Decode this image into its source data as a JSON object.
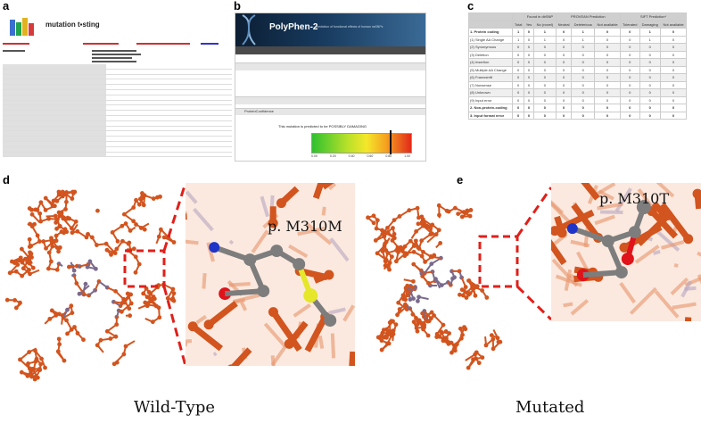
{
  "panels": {
    "a": "a",
    "b": "b",
    "c": "c",
    "d": "d",
    "e": "e"
  },
  "panel_a": {
    "title": "mutation t▪sting",
    "logo_icon": "mutation-taster-logo-icon"
  },
  "panel_b": {
    "title": "PolyPhen-2",
    "subtitle": "prediction of functional effects of human nsSNPs",
    "tag": "ProteinConfidence",
    "result_text": "This mutation is predicted to be POSSIBLY DAMAGING",
    "ticks": [
      "0.00",
      "0.20",
      "0.40",
      "0.60",
      "0.80",
      "1.00"
    ],
    "score": 0.78
  },
  "panel_c": {
    "headers": [
      "",
      "Total",
      "Yes",
      "No (novel)",
      "Neutral",
      "Deleterious",
      "Not available",
      "Tolerated",
      "Damaging",
      "Not available"
    ],
    "group_headers": [
      "Found in dbSNP",
      "PROVEAN Prediction",
      "SIFT Prediction*"
    ],
    "rows": [
      {
        "label": "1. Protein coding",
        "vals": [
          "1",
          "0",
          "1",
          "0",
          "1",
          "0",
          "0",
          "1",
          "0"
        ],
        "bold": true
      },
      {
        "label": "(1) Single AA Change",
        "vals": [
          "1",
          "0",
          "1",
          "0",
          "1",
          "0",
          "0",
          "1",
          "0"
        ]
      },
      {
        "label": "(2) Synonymous",
        "vals": [
          "0",
          "0",
          "0",
          "0",
          "0",
          "0",
          "0",
          "0",
          "0"
        ]
      },
      {
        "label": "(3) Deletion",
        "vals": [
          "0",
          "0",
          "0",
          "0",
          "0",
          "0",
          "0",
          "0",
          "0"
        ]
      },
      {
        "label": "(4) Insertion",
        "vals": [
          "0",
          "0",
          "0",
          "0",
          "0",
          "0",
          "0",
          "0",
          "0"
        ]
      },
      {
        "label": "(5) Multiple AA Change",
        "vals": [
          "0",
          "0",
          "0",
          "0",
          "0",
          "0",
          "0",
          "0",
          "0"
        ]
      },
      {
        "label": "(6) Frameshift",
        "vals": [
          "0",
          "0",
          "0",
          "0",
          "0",
          "0",
          "0",
          "0",
          "0"
        ]
      },
      {
        "label": "(7) Nonsense",
        "vals": [
          "0",
          "0",
          "0",
          "0",
          "0",
          "0",
          "0",
          "0",
          "0"
        ]
      },
      {
        "label": "(8) Unknown",
        "vals": [
          "0",
          "0",
          "0",
          "0",
          "0",
          "0",
          "0",
          "0",
          "0"
        ]
      },
      {
        "label": "(9) Input error",
        "vals": [
          "0",
          "0",
          "0",
          "0",
          "0",
          "0",
          "0",
          "0",
          "0"
        ]
      },
      {
        "label": "2. Non-protein-coding",
        "vals": [
          "0",
          "0",
          "0",
          "0",
          "0",
          "0",
          "0",
          "0",
          "0"
        ],
        "bold": true
      },
      {
        "label": "3. Input format error",
        "vals": [
          "0",
          "0",
          "0",
          "0",
          "0",
          "0",
          "0",
          "0",
          "0"
        ],
        "bold": true
      }
    ]
  },
  "panel_d": {
    "zoom_label": "p. M310M",
    "caption": "Wild-Type"
  },
  "panel_e": {
    "zoom_label": "p. M310T",
    "caption": "Mutated"
  },
  "colors": {
    "backbone": "#d2541e",
    "backbone_light": "#e8946a",
    "purple": "#7a6a8c",
    "zoom_border": "#e0201a",
    "carbon": "#7d7d7d",
    "nitrogen": "#2035c8",
    "oxygen": "#e0121a",
    "sulfur": "#e6e62a"
  }
}
